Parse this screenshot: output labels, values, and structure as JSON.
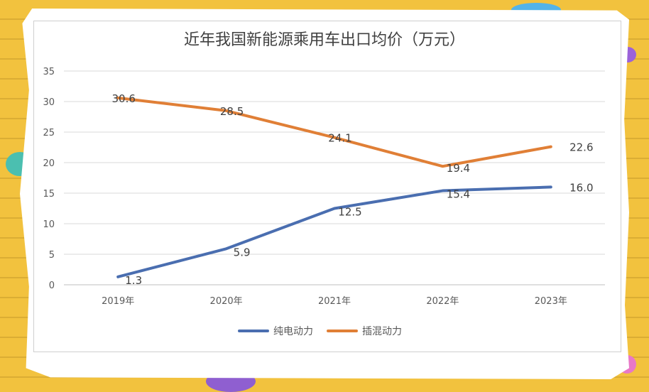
{
  "chart_data": {
    "type": "line",
    "title": "近年我国新能源乘用车出口均价（万元）",
    "categories": [
      "2019年",
      "2020年",
      "2021年",
      "2022年",
      "2023年"
    ],
    "ylim": [
      0,
      35
    ],
    "yticks": [
      "0",
      "5",
      "10",
      "15",
      "20",
      "25",
      "30",
      "35"
    ],
    "grid": true,
    "legend_position": "bottom",
    "series": [
      {
        "name": "纯电动力",
        "color": "#4a6eb0",
        "values": [
          1.3,
          5.9,
          12.5,
          15.4,
          16.0
        ],
        "labels": [
          "1.3",
          "5.9",
          "12.5",
          "15.4",
          "16.0"
        ]
      },
      {
        "name": "插混动力",
        "color": "#e07f36",
        "values": [
          30.6,
          28.5,
          24.1,
          19.4,
          22.6
        ],
        "labels": [
          "30.6",
          "28.5",
          "24.1",
          "19.4",
          "22.6"
        ]
      }
    ]
  }
}
